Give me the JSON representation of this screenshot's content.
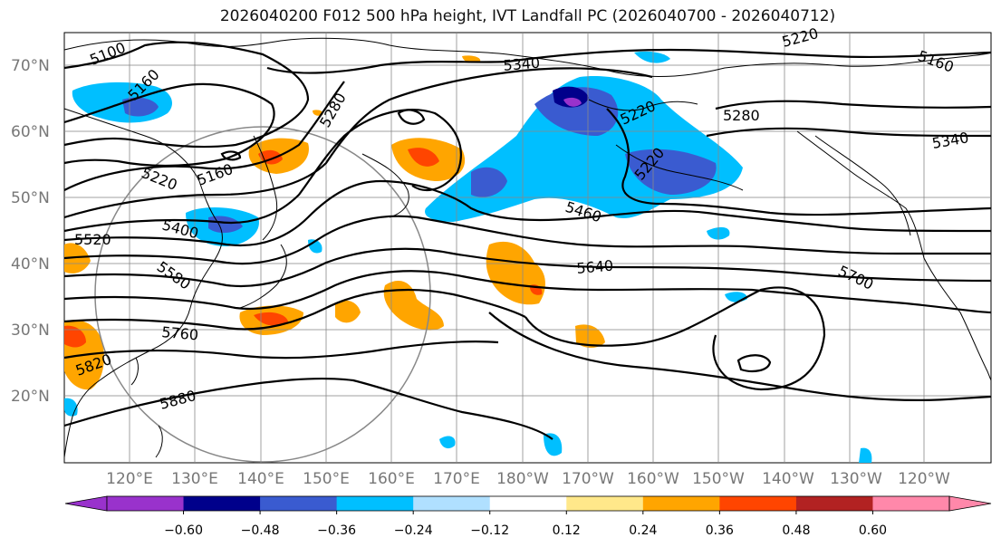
{
  "title": "2026040200 F012 500 hPa height, IVT Landfall PC (2026040700 - 2026040712)",
  "lat_labels": [
    "70°N",
    "60°N",
    "50°N",
    "40°N",
    "30°N",
    "20°N"
  ],
  "lon_labels": [
    "120°E",
    "130°E",
    "140°E",
    "150°E",
    "160°E",
    "170°E",
    "180°W",
    "170°W",
    "160°W",
    "150°W",
    "140°W",
    "130°W",
    "120°W"
  ],
  "contour_labels": [
    "5100",
    "5160",
    "5280",
    "5340",
    "5220",
    "5280",
    "5340",
    "5160",
    "5220",
    "5160",
    "5220",
    "5400",
    "5460",
    "5520",
    "5580",
    "5640",
    "5700",
    "5760",
    "5820",
    "5880",
    "5220"
  ],
  "colorbar": {
    "ticks": [
      "−0.60",
      "−0.48",
      "−0.36",
      "−0.24",
      "−0.12",
      "0.12",
      "0.24",
      "0.36",
      "0.48",
      "0.60"
    ],
    "colors": [
      "#9932cc",
      "#00008b",
      "#3a5bd0",
      "#00bfff",
      "#b0e0ff",
      "#ffffff",
      "#ffe88a",
      "#ffa500",
      "#ff4500",
      "#b22222",
      "#ff88aa"
    ]
  }
}
